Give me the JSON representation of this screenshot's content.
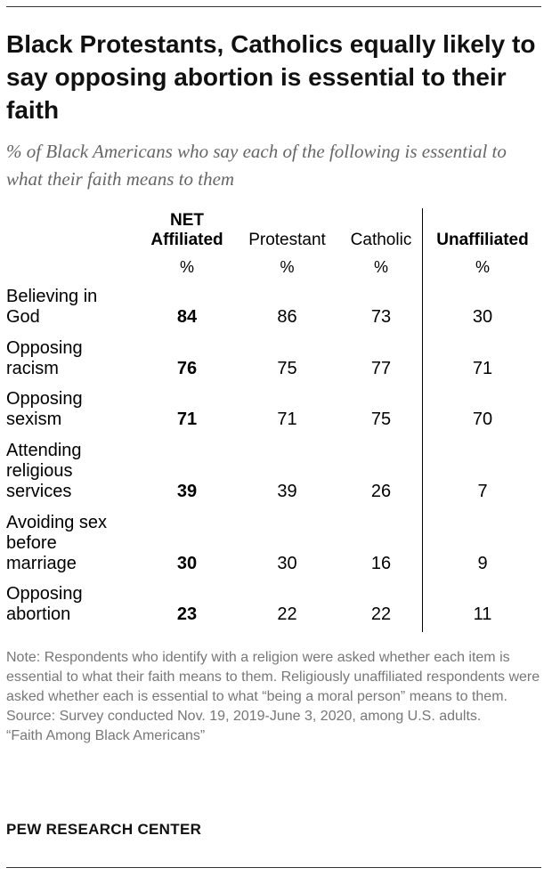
{
  "title": "Black Protestants, Catholics equally likely to say opposing abortion is essential to their faith",
  "subtitle": "% of Black Americans who say each of the following is essential to what their faith means to them",
  "chart_data": {
    "type": "table",
    "columns": [
      {
        "line1": "NET",
        "line2": "Affiliated",
        "unit": "%"
      },
      {
        "line1": "",
        "line2": "Protestant",
        "unit": "%"
      },
      {
        "line1": "",
        "line2": "Catholic",
        "unit": "%"
      },
      {
        "line1": "",
        "line2": "Unaffiliated",
        "unit": "%"
      }
    ],
    "rows": [
      {
        "label": [
          "Believing in",
          "God"
        ],
        "values": [
          84,
          86,
          73,
          30
        ]
      },
      {
        "label": [
          "Opposing",
          "racism"
        ],
        "values": [
          76,
          75,
          77,
          71
        ]
      },
      {
        "label": [
          "Opposing",
          "sexism"
        ],
        "values": [
          71,
          71,
          75,
          70
        ]
      },
      {
        "label": [
          "Attending",
          "religious",
          "services"
        ],
        "values": [
          39,
          39,
          26,
          7
        ]
      },
      {
        "label": [
          "Avoiding sex",
          "before",
          "marriage"
        ],
        "values": [
          30,
          30,
          16,
          9
        ]
      },
      {
        "label": [
          "Opposing",
          "abortion"
        ],
        "values": [
          23,
          22,
          22,
          11
        ]
      }
    ]
  },
  "notes": {
    "note": "Note: Respondents who identify with a religion were asked whether each item is essential to what their faith means to them. Religiously unaffiliated respondents were asked whether each is essential to what “being a moral person” means to them.",
    "source": "Source: Survey conducted Nov. 19, 2019-June 3, 2020, among U.S. adults.",
    "report": "“Faith Among Black Americans”"
  },
  "brand": "PEW RESEARCH CENTER"
}
